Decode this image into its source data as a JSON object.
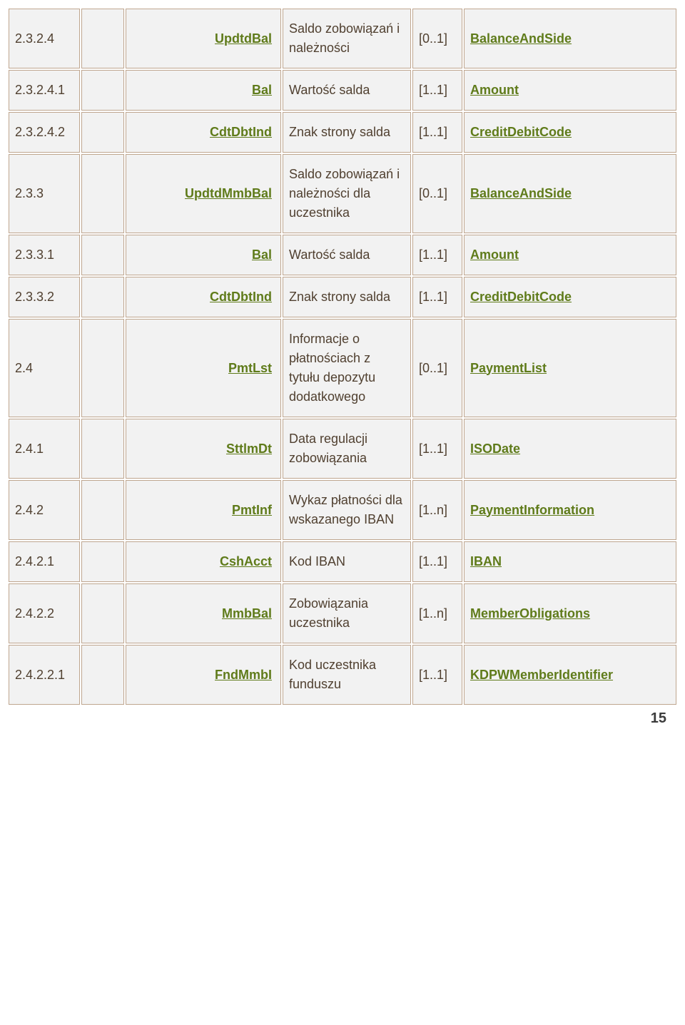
{
  "page_number": "15",
  "table": {
    "colors": {
      "cell_bg": "#f2f2f2",
      "cell_border": "#bfa68f",
      "link_color": "#5f7b1a",
      "text_color": "#504030"
    },
    "rows": [
      {
        "num": "2.3.2.4",
        "name": "UpdtdBal",
        "desc": "Saldo zobowiązań i należności",
        "card": "[0..1]",
        "type": "BalanceAndSide"
      },
      {
        "num": "2.3.2.4.1",
        "name": "Bal",
        "desc": "Wartość salda",
        "card": "[1..1]",
        "type": "Amount"
      },
      {
        "num": "2.3.2.4.2",
        "name": "CdtDbtInd",
        "desc": "Znak strony salda",
        "card": "[1..1]",
        "type": "CreditDebitCode"
      },
      {
        "num": "2.3.3",
        "name": "UpdtdMmbBal",
        "desc": "Saldo zobowiązań i należności dla uczestnika",
        "card": "[0..1]",
        "type": "BalanceAndSide"
      },
      {
        "num": "2.3.3.1",
        "name": "Bal",
        "desc": "Wartość salda",
        "card": "[1..1]",
        "type": "Amount"
      },
      {
        "num": "2.3.3.2",
        "name": "CdtDbtInd",
        "desc": "Znak strony salda",
        "card": "[1..1]",
        "type": "CreditDebitCode"
      },
      {
        "num": "2.4",
        "name": "PmtLst",
        "desc": "Informacje o płatnościach z tytułu depozytu dodatkowego",
        "card": "[0..1]",
        "type": "PaymentList"
      },
      {
        "num": "2.4.1",
        "name": "SttlmDt",
        "desc": "Data regulacji zobowiązania",
        "card": "[1..1]",
        "type": "ISODate"
      },
      {
        "num": "2.4.2",
        "name": "PmtInf",
        "desc": "Wykaz płatności dla wskazanego IBAN",
        "card": "[1..n]",
        "type": "PaymentInformation"
      },
      {
        "num": "2.4.2.1",
        "name": "CshAcct",
        "desc": "Kod IBAN",
        "card": "[1..1]",
        "type": "IBAN"
      },
      {
        "num": "2.4.2.2",
        "name": "MmbBal",
        "desc": "Zobowiązania uczestnika",
        "card": "[1..n]",
        "type": "MemberObligations"
      },
      {
        "num": "2.4.2.2.1",
        "name": "FndMmbI",
        "desc": "Kod uczestnika funduszu",
        "card": "[1..1]",
        "type": "KDPWMemberIdentifier"
      }
    ]
  }
}
